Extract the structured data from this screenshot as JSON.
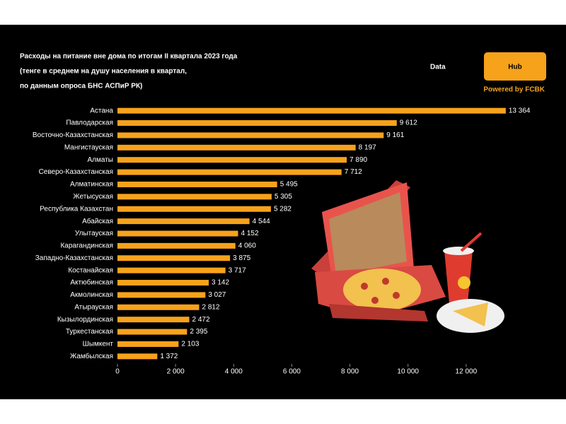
{
  "chart_data": {
    "type": "barh",
    "title": [
      "Расходы на питание вне дома по итогам II квартала 2023 года",
      "(тенге в среднем на душу населения в квартал,",
      "по данным опроса БНС АСПиР РК)"
    ],
    "brand": {
      "name": "Data",
      "badge": "Hub",
      "tagline": "Powered by FCBK"
    },
    "categories": [
      "Астана",
      "Павлодарская",
      "Восточно-Казахстанская",
      "Мангистауская",
      "Алматы",
      "Северо-Казахстанская",
      "Алматинская",
      "Жетысуская",
      "Республика Казахстан",
      "Абайская",
      "Улытауская",
      "Карагандинская",
      "Западно-Казахстанская",
      "Костанайская",
      "Актюбинская",
      "Акмолинская",
      "Атырауская",
      "Кызылординская",
      "Туркестанская",
      "Шымкент",
      "Жамбылская"
    ],
    "values": [
      13364,
      9612,
      9161,
      8197,
      7890,
      7712,
      5495,
      5305,
      5282,
      4544,
      4152,
      4060,
      3875,
      3717,
      3142,
      3027,
      2812,
      2472,
      2395,
      2103,
      1372
    ],
    "value_labels": [
      "13 364",
      "9 612",
      "9 161",
      "8 197",
      "7 890",
      "7 712",
      "5 495",
      "5 305",
      "5 282",
      "4 544",
      "4 152",
      "4 060",
      "3 875",
      "3 717",
      "3 142",
      "3 027",
      "2 812",
      "2 472",
      "2 395",
      "2 103",
      "1 372"
    ],
    "color": "#f7a21b",
    "xlim": [
      0,
      14000
    ],
    "xticks": [
      0,
      {
        "value": 2000,
        "label": "2 000"
      },
      {
        "value": 4000,
        "label": "4 000"
      },
      {
        "value": 6000,
        "label": "6 000"
      },
      {
        "value": 8000,
        "label": "8 000"
      },
      {
        "value": 10000,
        "label": "10 000"
      },
      {
        "value": 12000,
        "label": "12 000"
      }
    ]
  }
}
